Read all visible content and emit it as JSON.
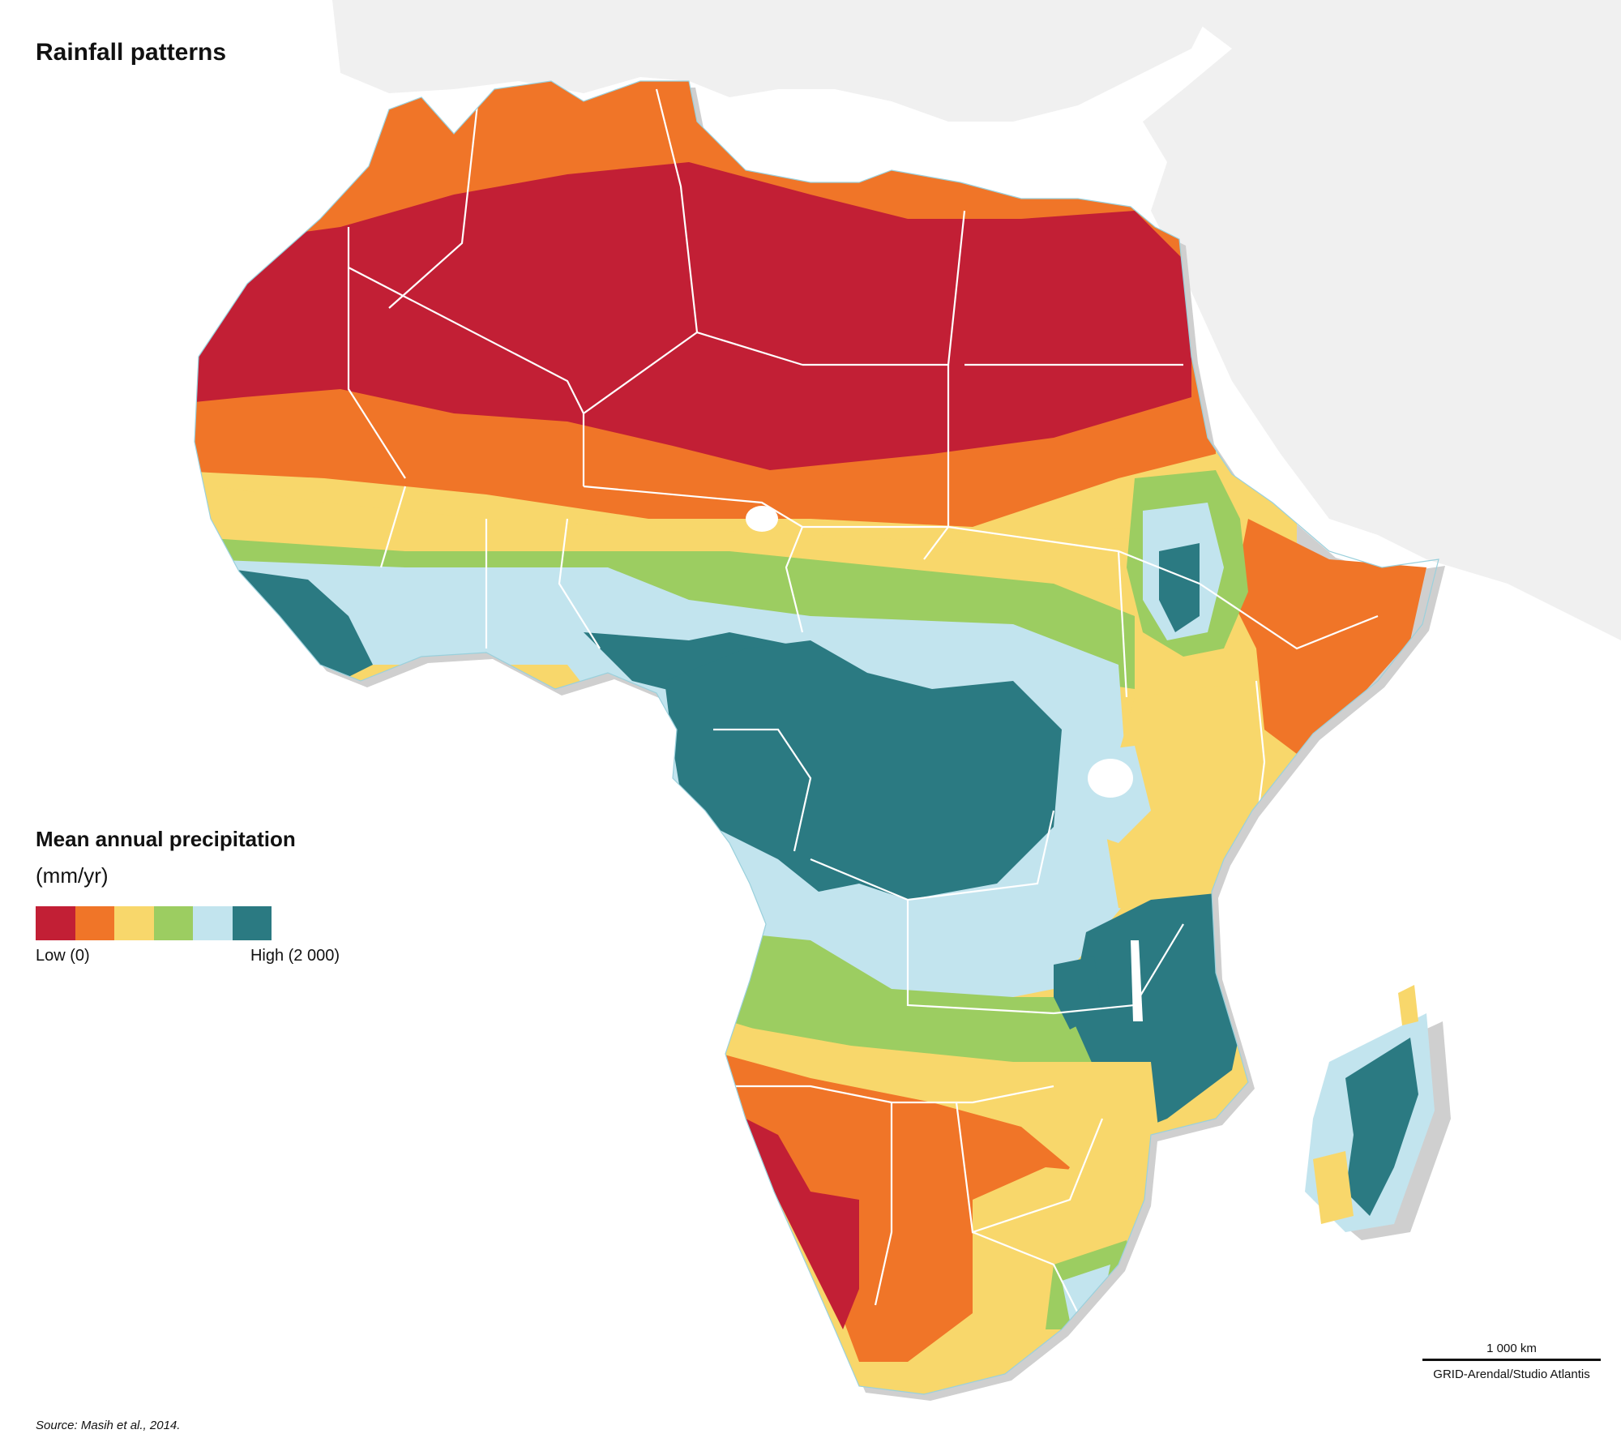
{
  "title": "Rainfall patterns",
  "legend": {
    "title": "Mean annual precipitation",
    "unit": "(mm/yr)",
    "low_label": "Low (0)",
    "high_label": "High (2 000)",
    "classes": [
      {
        "level": 1,
        "color": "#c21f35"
      },
      {
        "level": 2,
        "color": "#f07528"
      },
      {
        "level": 3,
        "color": "#f8d76b"
      },
      {
        "level": 4,
        "color": "#9ccd61"
      },
      {
        "level": 5,
        "color": "#c2e4ee"
      },
      {
        "level": 6,
        "color": "#2b7a82"
      }
    ]
  },
  "colors": {
    "land_other": "#f0f0f0",
    "sea": "#ffffff",
    "coast": "#9ad0dc",
    "border": "#ffffff",
    "shadow": "#cfcfcf"
  },
  "scale_bar": {
    "label": "1 000 km"
  },
  "credit": "GRID-Arendal/Studio Atlantis",
  "source": "Source: Masih et al., 2014."
}
